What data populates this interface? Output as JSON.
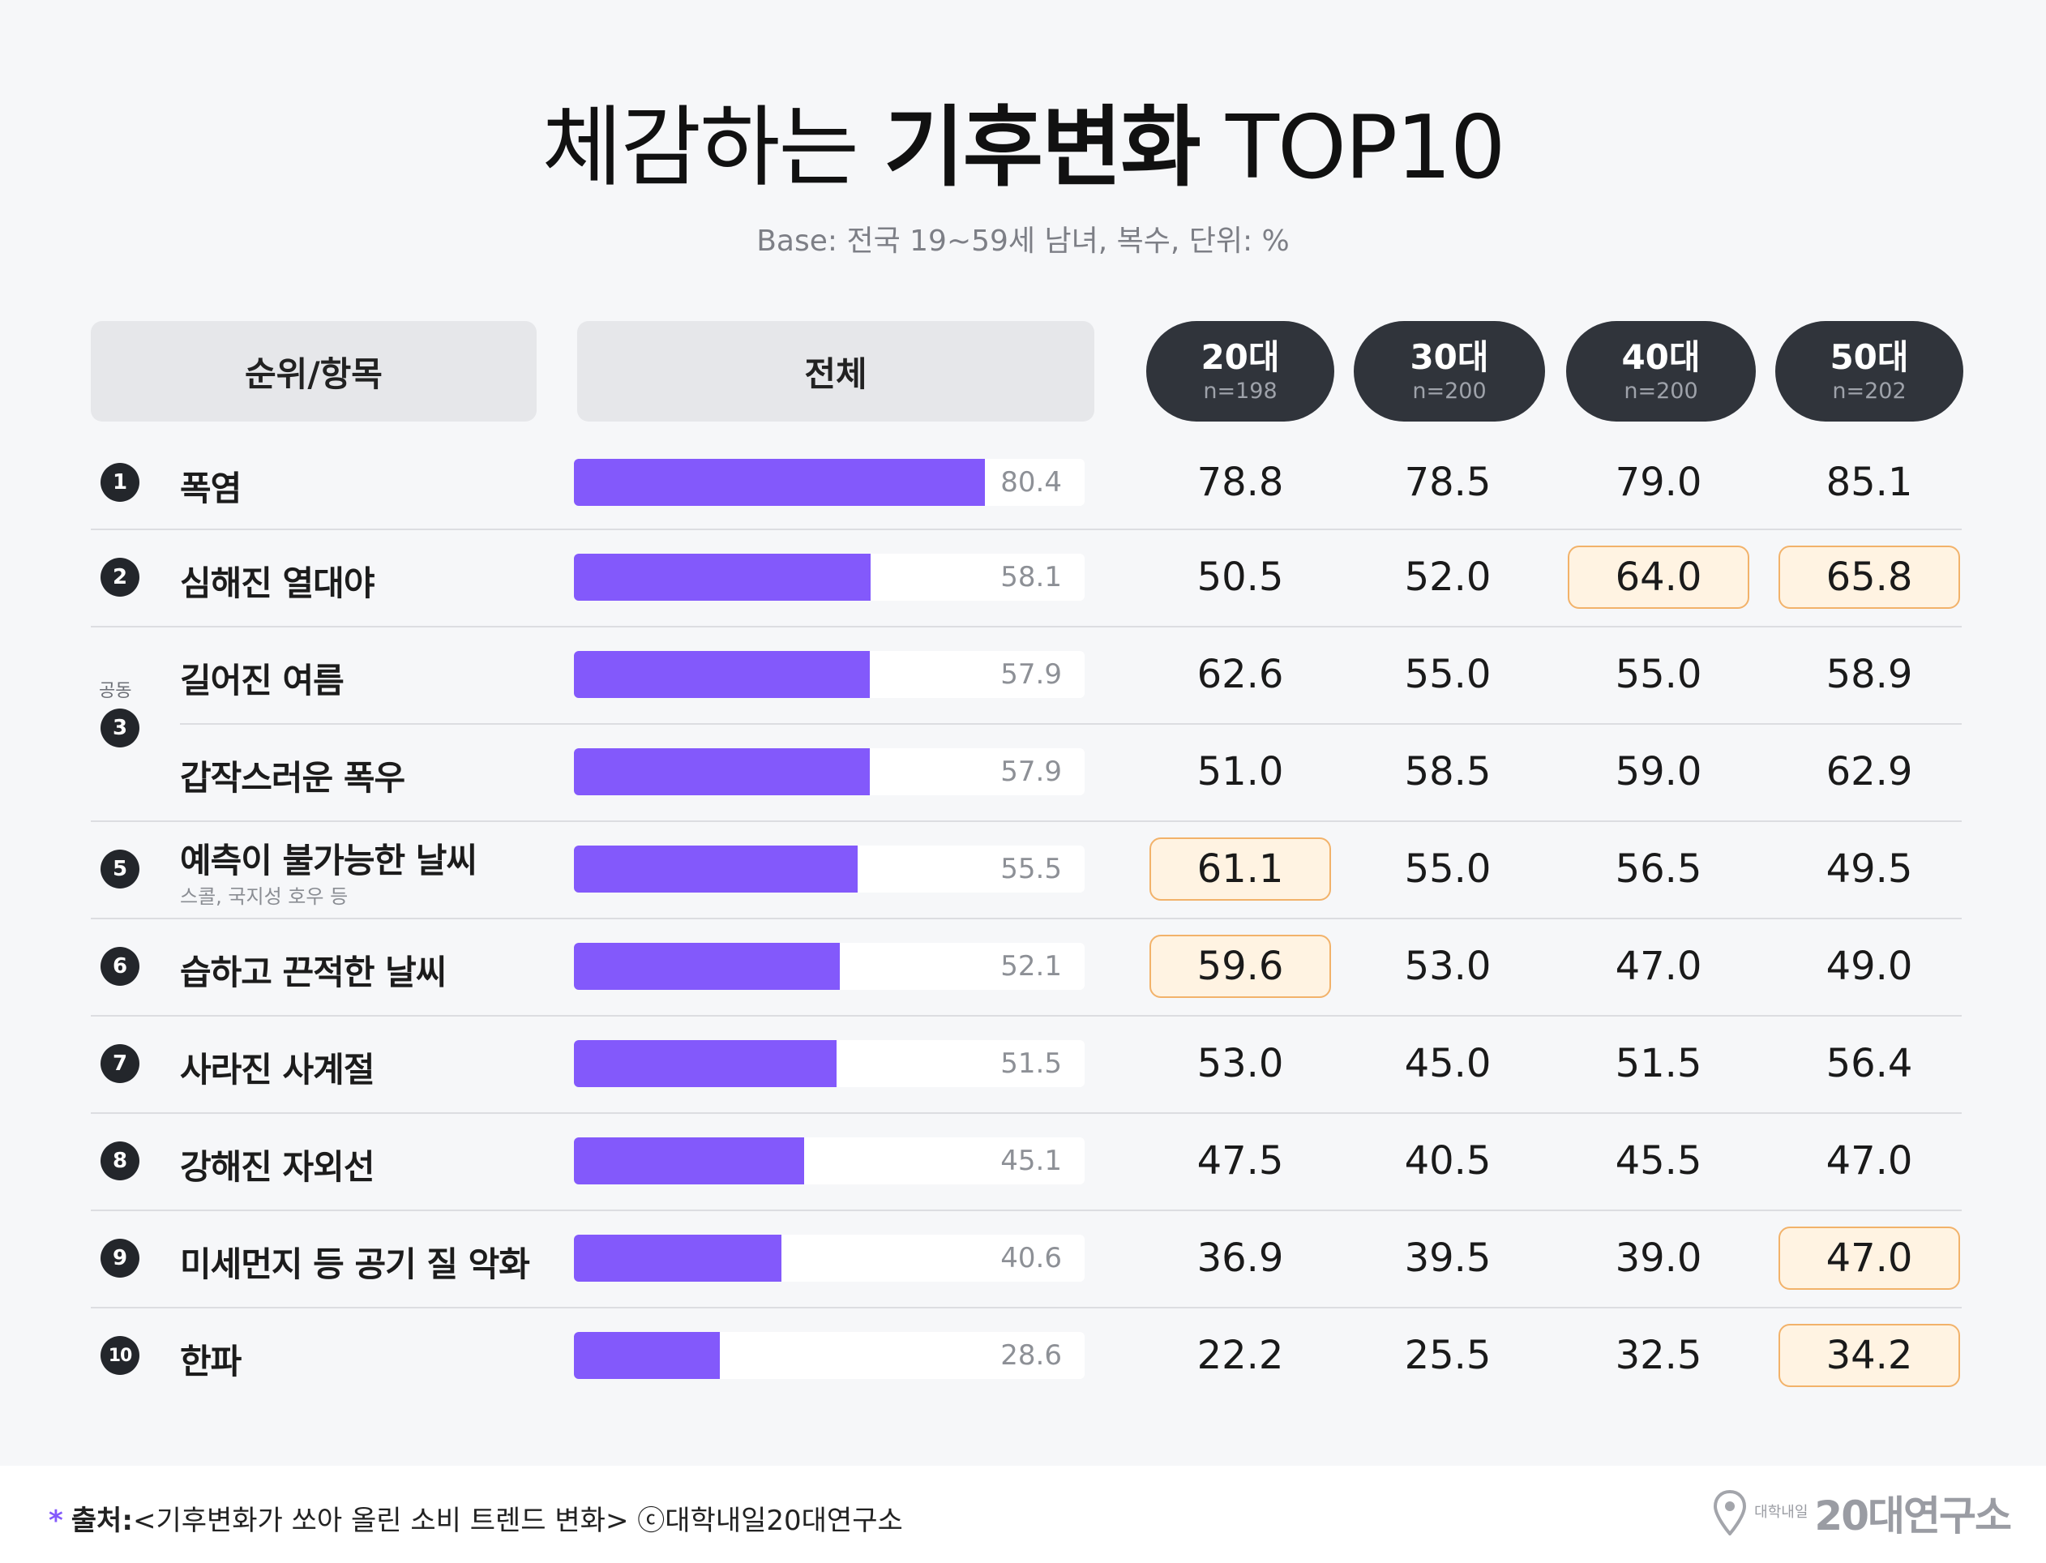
{
  "title": {
    "part1": "체감하는",
    "part2": "기후변화",
    "part3": "TOP10"
  },
  "subtitle": "Base: 전국 19~59세 남녀, 복수, 단위: %",
  "headers": {
    "rank_item": "순위/항목",
    "total": "전체",
    "ages": [
      {
        "label": "20대",
        "n": "n=198"
      },
      {
        "label": "30대",
        "n": "n=200"
      },
      {
        "label": "40대",
        "n": "n=200"
      },
      {
        "label": "50대",
        "n": "n=202"
      }
    ]
  },
  "tie_label": "공동",
  "colors": {
    "bar": "#8359fb",
    "highlight_fill": "#fff3e2",
    "highlight_border": "#f2b26a",
    "pill": "#30343b"
  },
  "chart_data": {
    "type": "bar",
    "xlim": [
      0,
      100
    ],
    "rows": [
      {
        "rank": "1",
        "item": "폭염",
        "note": "",
        "total": 80.4,
        "total_label": "80.4",
        "ages": [
          "78.8",
          "78.5",
          "79.0",
          "85.1"
        ],
        "highlight": [
          false,
          false,
          false,
          false
        ]
      },
      {
        "rank": "2",
        "item": "심해진 열대야",
        "note": "",
        "total": 58.1,
        "total_label": "58.1",
        "ages": [
          "50.5",
          "52.0",
          "64.0",
          "65.8"
        ],
        "highlight": [
          false,
          false,
          true,
          true
        ]
      },
      {
        "rank": "3",
        "item": "길어진 여름",
        "note": "",
        "total": 57.9,
        "total_label": "57.9",
        "ages": [
          "62.6",
          "55.0",
          "55.0",
          "58.9"
        ],
        "highlight": [
          false,
          false,
          false,
          false
        ]
      },
      {
        "rank": "",
        "item": "갑작스러운 폭우",
        "note": "",
        "total": 57.9,
        "total_label": "57.9",
        "ages": [
          "51.0",
          "58.5",
          "59.0",
          "62.9"
        ],
        "highlight": [
          false,
          false,
          false,
          false
        ]
      },
      {
        "rank": "5",
        "item": "예측이 불가능한 날씨",
        "note": "스콜, 국지성 호우 등",
        "total": 55.5,
        "total_label": "55.5",
        "ages": [
          "61.1",
          "55.0",
          "56.5",
          "49.5"
        ],
        "highlight": [
          true,
          false,
          false,
          false
        ]
      },
      {
        "rank": "6",
        "item": "습하고 끈적한 날씨",
        "note": "",
        "total": 52.1,
        "total_label": "52.1",
        "ages": [
          "59.6",
          "53.0",
          "47.0",
          "49.0"
        ],
        "highlight": [
          true,
          false,
          false,
          false
        ]
      },
      {
        "rank": "7",
        "item": "사라진 사계절",
        "note": "",
        "total": 51.5,
        "total_label": "51.5",
        "ages": [
          "53.0",
          "45.0",
          "51.5",
          "56.4"
        ],
        "highlight": [
          false,
          false,
          false,
          false
        ]
      },
      {
        "rank": "8",
        "item": "강해진 자외선",
        "note": "",
        "total": 45.1,
        "total_label": "45.1",
        "ages": [
          "47.5",
          "40.5",
          "45.5",
          "47.0"
        ],
        "highlight": [
          false,
          false,
          false,
          false
        ]
      },
      {
        "rank": "9",
        "item": "미세먼지 등 공기 질 악화",
        "note": "",
        "total": 40.6,
        "total_label": "40.6",
        "ages": [
          "36.9",
          "39.5",
          "39.0",
          "47.0"
        ],
        "highlight": [
          false,
          false,
          false,
          true
        ]
      },
      {
        "rank": "10",
        "item": "한파",
        "note": "",
        "total": 28.6,
        "total_label": "28.6",
        "ages": [
          "22.2",
          "25.5",
          "32.5",
          "34.2"
        ],
        "highlight": [
          false,
          false,
          false,
          true
        ]
      }
    ]
  },
  "footer": {
    "star": "*",
    "source_label": "출처:",
    "source_text": "<기후변화가 쏘아 올린 소비 트렌드 변화> ⓒ대학내일20대연구소",
    "logo_small": "대학내일",
    "logo_big": "20대연구소"
  }
}
